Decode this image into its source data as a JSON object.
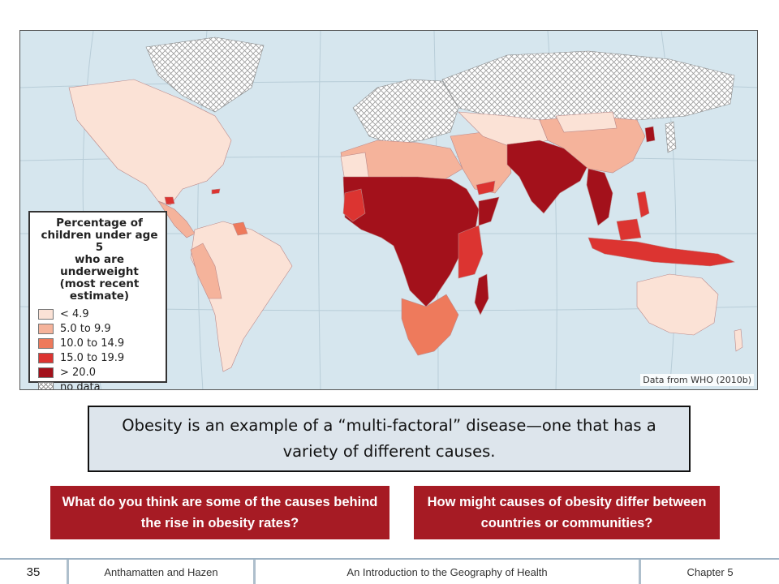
{
  "map": {
    "legend": {
      "title_lines": [
        "Percentage of",
        "children under age 5",
        "who are underweight",
        "(most recent estimate)"
      ],
      "items": [
        {
          "label": "< 4.9",
          "color": "#fbe2d6"
        },
        {
          "label": "5.0 to 9.9",
          "color": "#f5b39b"
        },
        {
          "label": "10.0 to 14.9",
          "color": "#ee7a5c"
        },
        {
          "label": "15.0 to 19.9",
          "color": "#dc3431"
        },
        {
          "label": "> 20.0",
          "color": "#a3111b"
        },
        {
          "label": "no data",
          "color": "#ffffff",
          "pattern": "crosshatch"
        }
      ]
    },
    "credit": "Data from WHO (2010b)",
    "ocean_color": "#d6e6ee",
    "nodata_color": "#ffffff"
  },
  "main_statement": "Obesity is an example of a “multi-factoral” disease—one that has a variety of different causes.",
  "questions": [
    "What do you think are some of the causes behind the rise in obesity rates?",
    "How might causes of obesity differ between countries or communities?"
  ],
  "footer": {
    "page_number": "35",
    "authors": "Anthamatten and Hazen",
    "book_title": "An Introduction to the Geography of Health",
    "chapter": "Chapter 5"
  }
}
